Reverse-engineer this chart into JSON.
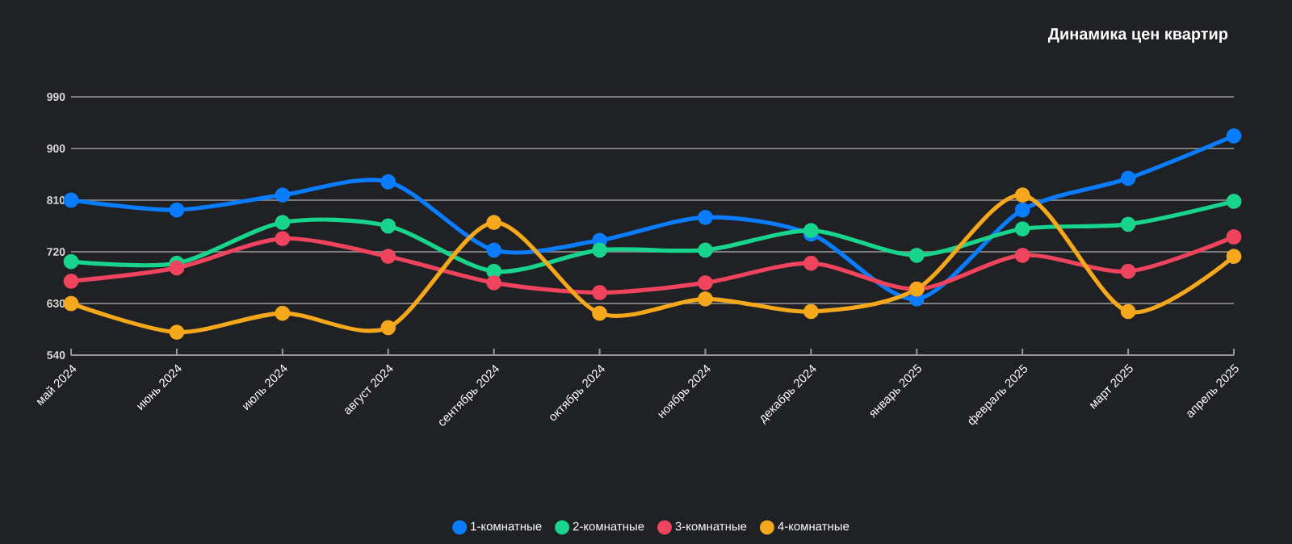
{
  "chart_data": {
    "type": "line",
    "title": "Динамика цен квартир",
    "categories": [
      "май 2024",
      "июнь 2024",
      "июль 2024",
      "август 2024",
      "сентябрь 2024",
      "октябрь 2024",
      "ноябрь 2024",
      "декабрь 2024",
      "январь 2025",
      "февраль 2025",
      "март 2025",
      "апрель 2025"
    ],
    "series": [
      {
        "name": "1-комнатные",
        "color": "#0a7cff",
        "values": [
          810,
          793,
          819,
          842,
          723,
          740,
          780,
          751,
          638,
          793,
          848,
          922
        ]
      },
      {
        "name": "2-комнатные",
        "color": "#19d48c",
        "values": [
          703,
          700,
          771,
          765,
          686,
          723,
          723,
          757,
          714,
          760,
          768,
          808
        ]
      },
      {
        "name": "3-комнатные",
        "color": "#f0445e",
        "values": [
          669,
          692,
          743,
          712,
          666,
          649,
          666,
          700,
          655,
          714,
          686,
          746
        ]
      },
      {
        "name": "4-комнатные",
        "color": "#f5a81c",
        "values": [
          630,
          580,
          613,
          588,
          771,
          613,
          638,
          616,
          655,
          819,
          616,
          712
        ]
      }
    ],
    "ylim": [
      540,
      990
    ],
    "yticks": [
      540,
      630,
      720,
      810,
      900,
      990
    ],
    "grid": "y",
    "legend": "bottom",
    "marker": "circle",
    "line_style": "solid"
  }
}
